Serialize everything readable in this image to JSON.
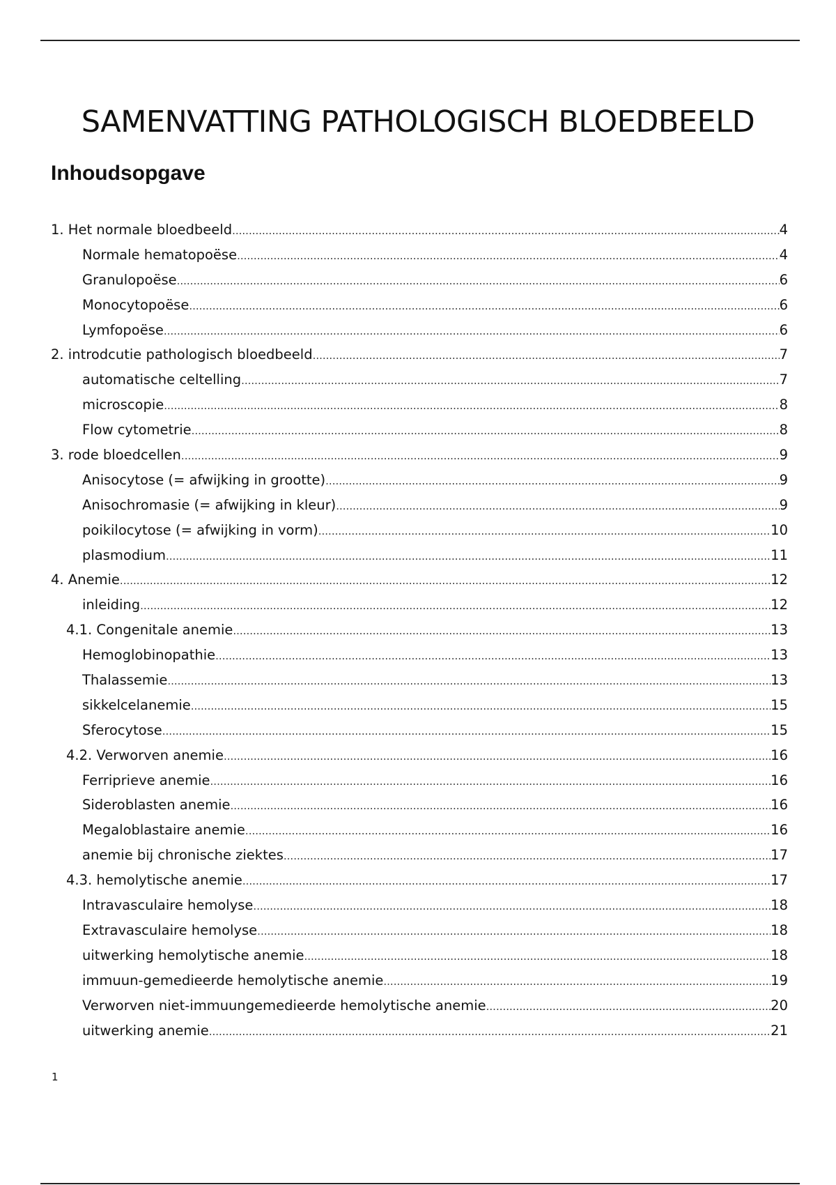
{
  "title": "SAMENVATTING PATHOLOGISCH BLOEDBEELD",
  "toc_heading": "Inhoudsopgave",
  "toc": [
    {
      "level": 1,
      "label": "1. Het normale bloedbeeld",
      "page": "4"
    },
    {
      "level": 3,
      "label": "Normale hematopoëse",
      "page": "4"
    },
    {
      "level": 3,
      "label": "Granulopoëse",
      "page": "6"
    },
    {
      "level": 3,
      "label": "Monocytopoëse",
      "page": "6"
    },
    {
      "level": 3,
      "label": "Lymfopoëse",
      "page": "6"
    },
    {
      "level": 1,
      "label": "2. introdcutie pathologisch bloedbeeld",
      "page": "7"
    },
    {
      "level": 3,
      "label": "automatische celtelling",
      "page": "7"
    },
    {
      "level": 3,
      "label": "microscopie",
      "page": "8"
    },
    {
      "level": 3,
      "label": "Flow cytometrie",
      "page": "8"
    },
    {
      "level": 1,
      "label": "3. rode bloedcellen",
      "page": "9"
    },
    {
      "level": 3,
      "label": "Anisocytose (= afwijking in grootte)",
      "page": "9"
    },
    {
      "level": 3,
      "label": "Anisochromasie (= afwijking in kleur)",
      "page": "9"
    },
    {
      "level": 3,
      "label": "poikilocytose (= afwijking in vorm)",
      "page": "10"
    },
    {
      "level": 3,
      "label": "plasmodium",
      "page": "11"
    },
    {
      "level": 1,
      "label": "4. Anemie",
      "page": "12"
    },
    {
      "level": 3,
      "label": "inleiding",
      "page": "12"
    },
    {
      "level": 2,
      "label": "4.1. Congenitale anemie",
      "page": "13"
    },
    {
      "level": 3,
      "label": "Hemoglobinopathie",
      "page": "13"
    },
    {
      "level": 3,
      "label": "Thalassemie",
      "page": "13"
    },
    {
      "level": 3,
      "label": "sikkelcelanemie",
      "page": "15"
    },
    {
      "level": 3,
      "label": "Sferocytose",
      "page": "15"
    },
    {
      "level": 2,
      "label": "4.2. Verworven anemie",
      "page": "16"
    },
    {
      "level": 3,
      "label": "Ferriprieve anemie",
      "page": "16"
    },
    {
      "level": 3,
      "label": "Sideroblasten anemie",
      "page": "16"
    },
    {
      "level": 3,
      "label": "Megaloblastaire anemie",
      "page": "16"
    },
    {
      "level": 3,
      "label": "anemie bij chronische ziektes",
      "page": "17"
    },
    {
      "level": 2,
      "label": "4.3. hemolytische anemie",
      "page": "17"
    },
    {
      "level": 3,
      "label": "Intravasculaire hemolyse",
      "page": "18"
    },
    {
      "level": 3,
      "label": "Extravasculaire hemolyse",
      "page": "18"
    },
    {
      "level": 3,
      "label": "uitwerking hemolytische anemie",
      "page": "18"
    },
    {
      "level": 3,
      "label": "immuun-gemedieerde hemolytische anemie",
      "page": "19"
    },
    {
      "level": 3,
      "label": "Verworven niet-immuungemedieerde hemolytische anemie",
      "page": "20"
    },
    {
      "level": 3,
      "label": "uitwerking anemie",
      "page": "21"
    }
  ],
  "page_number": "1"
}
